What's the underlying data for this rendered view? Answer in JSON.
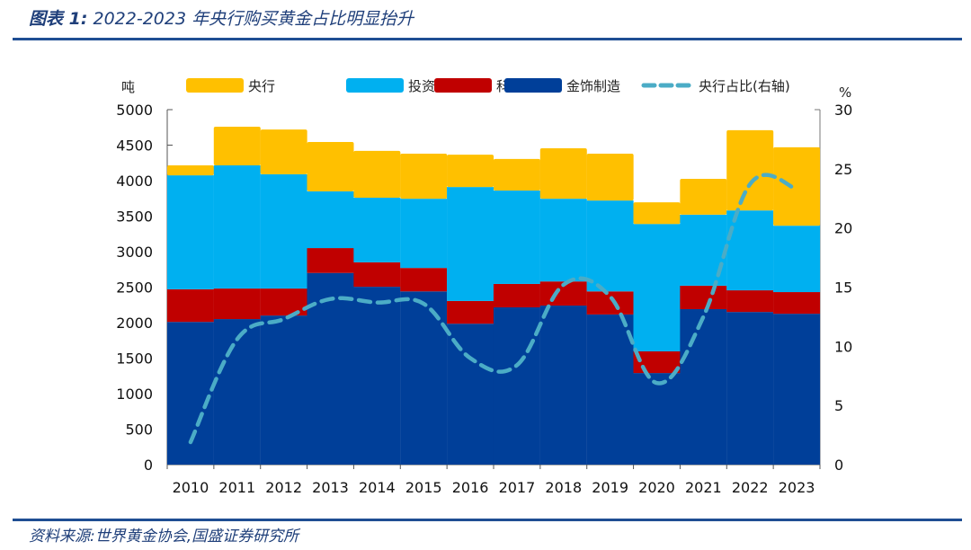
{
  "header": {
    "title_prefix": "图表 1:",
    "title_text": "2022-2023 年央行购买黄金占比明显抬升"
  },
  "footer": {
    "source": "资料来源:世界黄金协会,国盛证券研究所"
  },
  "colors": {
    "central_bank": "#FFC000",
    "investment": "#00B0F0",
    "technology": "#C00000",
    "jewellery": "#003F99",
    "share_line": "#4BACC6",
    "rule": "#1F4E93"
  },
  "chart_data": {
    "type": "bar",
    "stacked": true,
    "title": "2022-2023 年央行购买黄金占比明显抬升",
    "xlabel": "",
    "ylabel": "吨",
    "y2label": "%",
    "ylim": [
      0,
      5000
    ],
    "y2lim": [
      0,
      30
    ],
    "yticks": [
      "0",
      "500",
      "1000",
      "1500",
      "2000",
      "2500",
      "3000",
      "3500",
      "4000",
      "4500",
      "5000"
    ],
    "y2ticks": [
      "0",
      "5",
      "10",
      "15",
      "20",
      "25",
      "30"
    ],
    "grid": false,
    "legend_position": "top",
    "categories": [
      "2010",
      "2011",
      "2012",
      "2013",
      "2014",
      "2015",
      "2016",
      "2017",
      "2018",
      "2019",
      "2020",
      "2021",
      "2022",
      "2023"
    ],
    "series": [
      {
        "name": "金饰制造",
        "key": "jewellery",
        "axis": "left",
        "kind": "bar",
        "values": [
          2010,
          2050,
          2100,
          2700,
          2505,
          2440,
          1985,
          2215,
          2240,
          2115,
          1290,
          2190,
          2150,
          2125
        ]
      },
      {
        "name": "科技",
        "key": "technology",
        "axis": "left",
        "kind": "bar",
        "values": [
          460,
          430,
          380,
          350,
          345,
          330,
          320,
          330,
          340,
          325,
          305,
          330,
          305,
          305
        ]
      },
      {
        "name": "投资",
        "key": "investment",
        "axis": "left",
        "kind": "bar",
        "values": [
          1605,
          1735,
          1610,
          800,
          910,
          975,
          1605,
          1315,
          1165,
          1280,
          1795,
          1000,
          1125,
          935
        ]
      },
      {
        "name": "央行",
        "key": "central_bank",
        "axis": "left",
        "kind": "bar",
        "values": [
          140,
          545,
          630,
          695,
          660,
          635,
          455,
          445,
          710,
          660,
          305,
          505,
          1130,
          1105
        ]
      },
      {
        "name": "央行占比(右轴)",
        "key": "share_line",
        "axis": "right",
        "kind": "line",
        "style": "dashed",
        "values": [
          1.9,
          10.6,
          12.3,
          14.0,
          13.7,
          13.6,
          9.0,
          8.4,
          15.2,
          14.2,
          6.9,
          12.5,
          23.7,
          23.3
        ]
      }
    ],
    "legend": [
      {
        "label": "央行",
        "key": "central_bank",
        "kind": "bar"
      },
      {
        "label": "投资",
        "key": "investment",
        "kind": "bar"
      },
      {
        "label": "科技",
        "key": "technology",
        "kind": "bar"
      },
      {
        "label": "金饰制造",
        "key": "jewellery",
        "kind": "bar"
      },
      {
        "label": "央行占比(右轴)",
        "key": "share_line",
        "kind": "line"
      }
    ]
  }
}
